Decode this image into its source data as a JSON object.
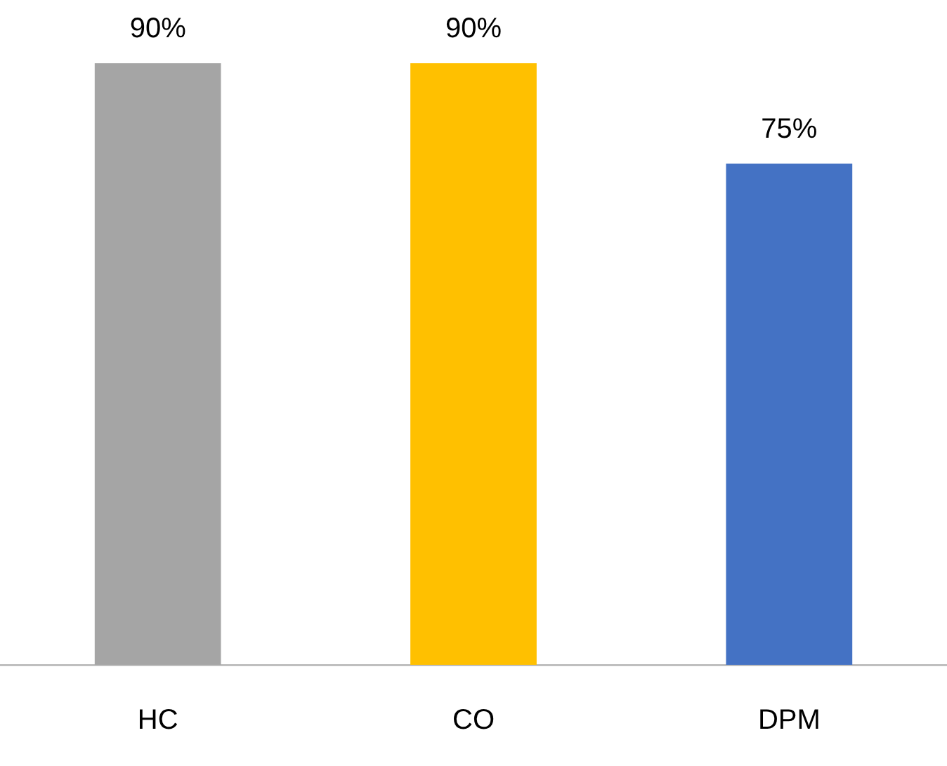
{
  "chart_data": {
    "type": "bar",
    "categories": [
      "HC",
      "CO",
      "DPM"
    ],
    "values": [
      90,
      90,
      75
    ],
    "colors": [
      "#a5a5a5",
      "#ffc000",
      "#4472c4"
    ],
    "value_labels": [
      "90%",
      "90%",
      "75%"
    ],
    "grid": false,
    "legend": false
  }
}
